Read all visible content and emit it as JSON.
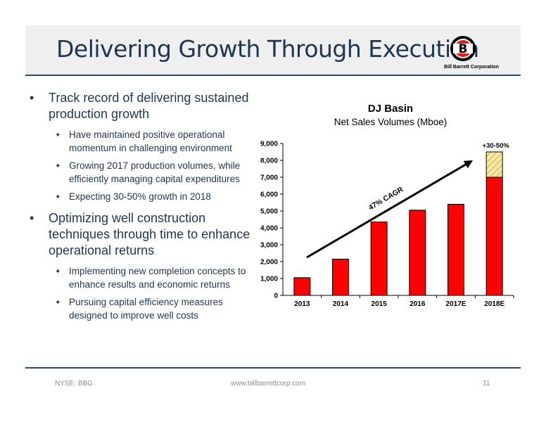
{
  "header": {
    "title": "Delivering Growth Through Execution",
    "logo_letter": "B",
    "logo_text": "Bill Barrett Corporation"
  },
  "bullets": [
    {
      "text": "Track record of delivering sustained production growth",
      "sub": [
        "Have maintained positive operational momentum in challenging environment",
        "Growing 2017 production volumes, while efficiently managing capital expenditures",
        "Expecting 30-50% growth in 2018"
      ]
    },
    {
      "text": "Optimizing well construction techniques through time to enhance operational returns",
      "sub": [
        "Implementing new completion concepts to enhance results and economic returns",
        "Pursuing capital efficiency measures designed to improve well costs"
      ]
    }
  ],
  "bullet_glyph": "•",
  "sub_glyph": "✦",
  "chart_data": {
    "type": "bar",
    "title": "DJ Basin",
    "subtitle": "Net Sales Volumes (Mboe)",
    "categories": [
      "2013",
      "2014",
      "2015",
      "2016",
      "2017E",
      "2018E"
    ],
    "values": [
      1050,
      2150,
      4350,
      5050,
      5400,
      7000
    ],
    "upside": {
      "category": "2018E",
      "from": 7000,
      "to": 8500,
      "label": "+30-50%"
    },
    "annotation": "47% CAGR",
    "ylim": [
      0,
      9000
    ],
    "yticks": [
      "0",
      "1,000",
      "2,000",
      "3,000",
      "4,000",
      "5,000",
      "6,000",
      "7,000",
      "8,000",
      "9,000"
    ],
    "ytick_values": [
      0,
      1000,
      2000,
      3000,
      4000,
      5000,
      6000,
      7000,
      8000,
      9000
    ],
    "bar_color": "#ff0000",
    "upside_color": "#f5e7a8",
    "grid": false
  },
  "footer": {
    "left": "NYSE: BBG",
    "center": "www.billbarrettcorp.com",
    "page": "11"
  },
  "colors": {
    "title": "#1f3552",
    "rule": "#2c4a6b",
    "header_bg": "#efefef"
  }
}
